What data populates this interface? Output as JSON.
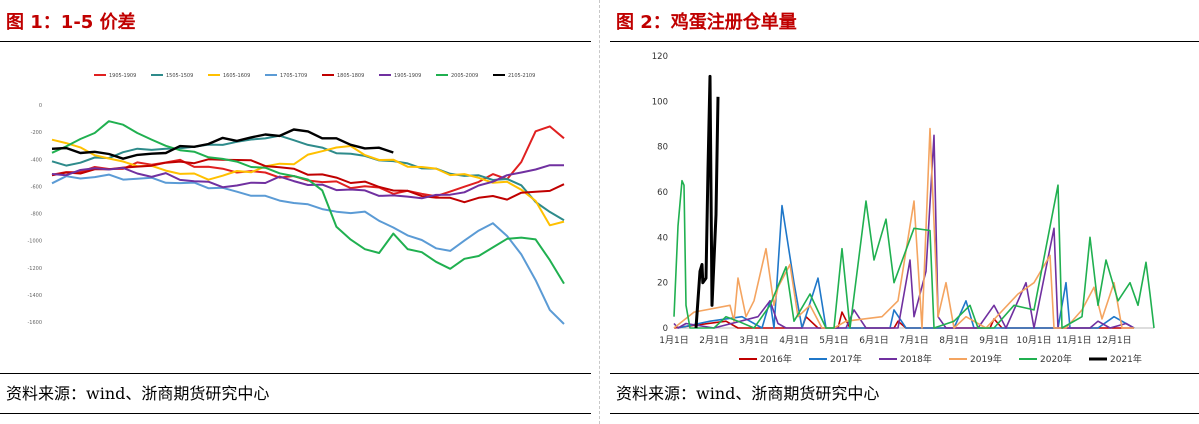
{
  "panel1": {
    "title": "图 1：1-5 价差",
    "source": "资料来源：wind、浙商期货研究中心"
  },
  "panel2": {
    "title": "图 2：鸡蛋注册仓单量",
    "source": "资料来源：wind、浙商期货研究中心"
  },
  "chart_data": [
    {
      "type": "line",
      "legend_position": "top",
      "grid": false,
      "ylim": [
        -1600,
        0
      ],
      "yticks": [
        0,
        -200,
        -400,
        -600,
        -800,
        -1000,
        -1200,
        -1400,
        -1600
      ],
      "series": [
        {
          "name": "1905-1909",
          "color": "#e02020",
          "values": [
            -520,
            -500,
            -480,
            -470,
            -470,
            -460,
            -440,
            -430,
            -420,
            -420,
            -440,
            -460,
            -480,
            -480,
            -500,
            -500,
            -520,
            -540,
            -550,
            -560,
            -580,
            -600,
            -600,
            -620,
            -640,
            -640,
            -660,
            -660,
            -650,
            -600,
            -560,
            -520,
            -540,
            -420,
            -200,
            -150,
            -250
          ]
        },
        {
          "name": "1505-1509",
          "color": "#2e8b8b",
          "values": [
            -430,
            -440,
            -420,
            -400,
            -380,
            -350,
            -330,
            -320,
            -330,
            -320,
            -300,
            -300,
            -290,
            -270,
            -260,
            -240,
            -230,
            -260,
            -290,
            -320,
            -350,
            -360,
            -380,
            -400,
            -420,
            -430,
            -460,
            -480,
            -500,
            -520,
            -530,
            -540,
            -550,
            -600,
            -700,
            -800,
            -850
          ]
        },
        {
          "name": "1605-1609",
          "color": "#ffc000",
          "values": [
            -250,
            -280,
            -320,
            -360,
            -400,
            -420,
            -440,
            -460,
            -480,
            -500,
            -520,
            -540,
            -520,
            -500,
            -480,
            -460,
            -440,
            -420,
            -380,
            -340,
            -300,
            -320,
            -360,
            -400,
            -420,
            -440,
            -460,
            -480,
            -500,
            -520,
            -540,
            -560,
            -580,
            -620,
            -700,
            -900,
            -850
          ]
        },
        {
          "name": "1705-1709",
          "color": "#5b9bd5",
          "values": [
            -560,
            -540,
            -540,
            -520,
            -530,
            -540,
            -540,
            -550,
            -560,
            -580,
            -580,
            -600,
            -620,
            -640,
            -660,
            -680,
            -700,
            -720,
            -740,
            -760,
            -790,
            -800,
            -780,
            -860,
            -900,
            -960,
            -1000,
            -1050,
            -1080,
            -1000,
            -920,
            -880,
            -960,
            -1100,
            -1300,
            -1500,
            -1620
          ]
        },
        {
          "name": "1805-1809",
          "color": "#c00000",
          "values": [
            -520,
            -500,
            -500,
            -480,
            -470,
            -460,
            -460,
            -440,
            -430,
            -420,
            -420,
            -410,
            -400,
            -400,
            -420,
            -440,
            -460,
            -480,
            -500,
            -520,
            -540,
            -560,
            -580,
            -600,
            -620,
            -650,
            -660,
            -680,
            -700,
            -700,
            -690,
            -680,
            -680,
            -660,
            -640,
            -620,
            -600
          ]
        },
        {
          "name": "1905-1909",
          "color": "#7030a0",
          "values": [
            -520,
            -500,
            -490,
            -470,
            -460,
            -480,
            -500,
            -520,
            -520,
            -540,
            -560,
            -580,
            -590,
            -600,
            -580,
            -560,
            -540,
            -560,
            -580,
            -600,
            -620,
            -620,
            -640,
            -660,
            -670,
            -680,
            -680,
            -670,
            -660,
            -640,
            -600,
            -560,
            -520,
            -500,
            -470,
            -450,
            -440
          ]
        },
        {
          "name": "2005-2009",
          "color": "#20b050",
          "values": [
            -350,
            -300,
            -260,
            -200,
            -120,
            -150,
            -200,
            -260,
            -300,
            -330,
            -350,
            -380,
            -400,
            -420,
            -450,
            -470,
            -500,
            -520,
            -560,
            -620,
            -900,
            -1000,
            -1050,
            -1100,
            -950,
            -1050,
            -1100,
            -1150,
            -1200,
            -1150,
            -1100,
            -1050,
            -1000,
            -960,
            -1000,
            -1150,
            -1300
          ]
        },
        {
          "name": "2105-2109",
          "color": "#000000",
          "values": [
            -320,
            -330,
            -340,
            -350,
            -370,
            -380,
            -380,
            -360,
            -340,
            -320,
            -300,
            -280,
            -260,
            -250,
            -240,
            -230,
            -210,
            -190,
            -200,
            -230,
            -260,
            -290,
            -310,
            -330,
            -340
          ]
        }
      ]
    },
    {
      "type": "line",
      "legend_position": "bottom",
      "grid": false,
      "ylim": [
        0,
        120
      ],
      "yticks": [
        0,
        20,
        40,
        60,
        80,
        100,
        120
      ],
      "categories": [
        "1月1日",
        "2月1日",
        "3月1日",
        "4月1日",
        "5月1日",
        "6月1日",
        "7月1日",
        "8月1日",
        "9月1日",
        "10月1日",
        "11月1日",
        "12月1日"
      ],
      "series": [
        {
          "name": "2016年",
          "color": "#c00000",
          "points": [
            [
              0.0,
              0
            ],
            [
              1.3,
              3
            ],
            [
              1.6,
              0
            ],
            [
              3.2,
              0
            ],
            [
              3.3,
              5
            ],
            [
              3.6,
              0
            ],
            [
              4.1,
              0
            ],
            [
              4.2,
              7
            ],
            [
              4.4,
              0
            ],
            [
              5.5,
              0
            ],
            [
              5.6,
              3
            ],
            [
              5.8,
              0
            ],
            [
              7.9,
              0
            ],
            [
              8.0,
              4
            ],
            [
              8.2,
              0
            ],
            [
              11.5,
              0
            ]
          ]
        },
        {
          "name": "2017年",
          "color": "#1f77c9",
          "points": [
            [
              0.1,
              0
            ],
            [
              0.9,
              3
            ],
            [
              1.7,
              5
            ],
            [
              2.2,
              0
            ],
            [
              2.4,
              12
            ],
            [
              2.5,
              0
            ],
            [
              2.7,
              54
            ],
            [
              3.0,
              20
            ],
            [
              3.2,
              0
            ],
            [
              3.6,
              22
            ],
            [
              3.8,
              0
            ],
            [
              5.4,
              0
            ],
            [
              5.5,
              8
            ],
            [
              5.8,
              0
            ],
            [
              7.0,
              0
            ],
            [
              7.3,
              12
            ],
            [
              7.5,
              0
            ],
            [
              9.6,
              0
            ],
            [
              9.8,
              20
            ],
            [
              9.9,
              0
            ],
            [
              10.6,
              0
            ],
            [
              11.0,
              5
            ],
            [
              11.5,
              0
            ]
          ]
        },
        {
          "name": "2018年",
          "color": "#7030a0",
          "points": [
            [
              0.0,
              2
            ],
            [
              0.1,
              0
            ],
            [
              0.3,
              2
            ],
            [
              1.0,
              0
            ],
            [
              2.1,
              5
            ],
            [
              2.4,
              12
            ],
            [
              2.6,
              2
            ],
            [
              2.8,
              0
            ],
            [
              4.3,
              0
            ],
            [
              4.5,
              8
            ],
            [
              4.8,
              0
            ],
            [
              5.6,
              0
            ],
            [
              5.9,
              30
            ],
            [
              6.0,
              5
            ],
            [
              6.3,
              25
            ],
            [
              6.5,
              85
            ],
            [
              6.6,
              5
            ],
            [
              6.8,
              0
            ],
            [
              7.6,
              0
            ],
            [
              8.0,
              10
            ],
            [
              8.3,
              0
            ],
            [
              8.8,
              20
            ],
            [
              9.0,
              0
            ],
            [
              9.5,
              44
            ],
            [
              9.6,
              0
            ],
            [
              10.4,
              0
            ],
            [
              10.6,
              3
            ],
            [
              10.9,
              0
            ],
            [
              11.3,
              2
            ],
            [
              11.5,
              0
            ]
          ]
        },
        {
          "name": "2019年",
          "color": "#f4a460",
          "points": [
            [
              0.0,
              0
            ],
            [
              0.5,
              7
            ],
            [
              1.4,
              10
            ],
            [
              1.5,
              3
            ],
            [
              1.6,
              22
            ],
            [
              1.8,
              5
            ],
            [
              2.0,
              12
            ],
            [
              2.3,
              35
            ],
            [
              2.5,
              10
            ],
            [
              2.6,
              18
            ],
            [
              2.9,
              28
            ],
            [
              3.1,
              5
            ],
            [
              3.4,
              10
            ],
            [
              3.7,
              0
            ],
            [
              4.0,
              0
            ],
            [
              4.3,
              3
            ],
            [
              5.2,
              5
            ],
            [
              5.6,
              12
            ],
            [
              6.0,
              56
            ],
            [
              6.2,
              0
            ],
            [
              6.4,
              88
            ],
            [
              6.6,
              5
            ],
            [
              6.8,
              20
            ],
            [
              7.0,
              0
            ],
            [
              7.3,
              5
            ],
            [
              7.8,
              0
            ],
            [
              8.6,
              15
            ],
            [
              9.0,
              20
            ],
            [
              9.4,
              32
            ],
            [
              9.5,
              0
            ],
            [
              9.8,
              0
            ],
            [
              10.2,
              8
            ],
            [
              10.5,
              18
            ],
            [
              10.7,
              4
            ],
            [
              11.0,
              20
            ],
            [
              11.2,
              0
            ],
            [
              11.5,
              0
            ]
          ]
        },
        {
          "name": "2020年",
          "color": "#20b050",
          "points": [
            [
              0.0,
              5
            ],
            [
              0.1,
              45
            ],
            [
              0.2,
              65
            ],
            [
              0.25,
              63
            ],
            [
              0.3,
              10
            ],
            [
              0.4,
              0
            ],
            [
              1.0,
              0
            ],
            [
              1.3,
              5
            ],
            [
              1.6,
              3
            ],
            [
              2.0,
              0
            ],
            [
              2.4,
              10
            ],
            [
              2.8,
              27
            ],
            [
              3.0,
              3
            ],
            [
              3.4,
              15
            ],
            [
              3.8,
              0
            ],
            [
              4.0,
              0
            ],
            [
              4.2,
              35
            ],
            [
              4.4,
              0
            ],
            [
              4.8,
              56
            ],
            [
              5.0,
              30
            ],
            [
              5.3,
              48
            ],
            [
              5.5,
              20
            ],
            [
              6.0,
              44
            ],
            [
              6.4,
              43
            ],
            [
              6.5,
              0
            ],
            [
              7.0,
              3
            ],
            [
              7.4,
              10
            ],
            [
              7.6,
              0
            ],
            [
              8.0,
              0
            ],
            [
              8.5,
              10
            ],
            [
              9.0,
              8
            ],
            [
              9.6,
              63
            ],
            [
              9.7,
              0
            ],
            [
              10.2,
              5
            ],
            [
              10.4,
              40
            ],
            [
              10.6,
              10
            ],
            [
              10.8,
              30
            ],
            [
              11.1,
              12
            ],
            [
              11.4,
              20
            ],
            [
              11.6,
              10
            ],
            [
              11.8,
              29
            ],
            [
              11.9,
              15
            ],
            [
              12.0,
              0
            ]
          ]
        },
        {
          "name": "2021年",
          "color": "#000000",
          "points": [
            [
              0.55,
              0
            ],
            [
              0.65,
              25
            ],
            [
              0.7,
              28
            ],
            [
              0.72,
              20
            ],
            [
              0.8,
              22
            ],
            [
              0.85,
              70
            ],
            [
              0.9,
              111
            ],
            [
              0.95,
              10
            ],
            [
              1.0,
              30
            ],
            [
              1.05,
              50
            ],
            [
              1.1,
              102
            ]
          ]
        }
      ]
    }
  ]
}
